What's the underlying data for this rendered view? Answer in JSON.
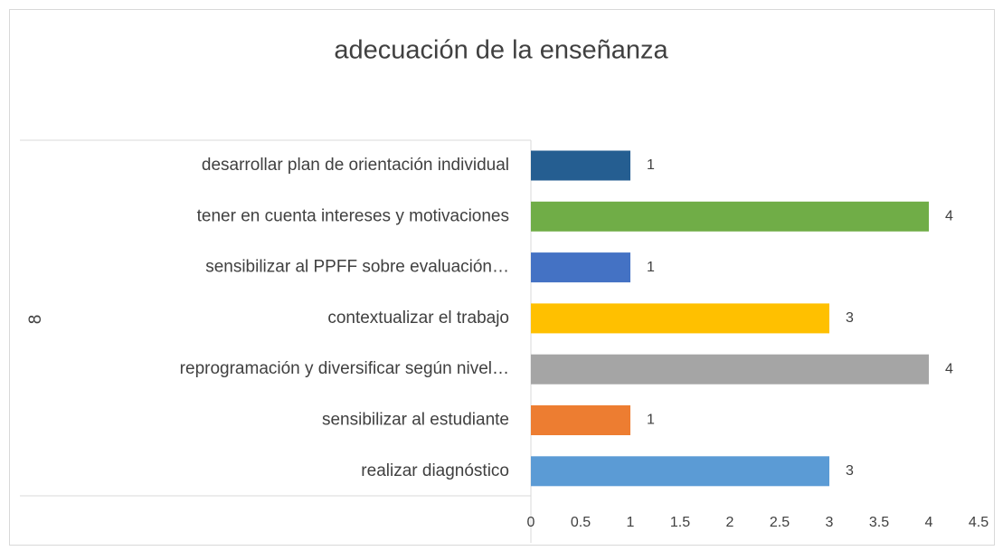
{
  "chart_data": {
    "type": "barh",
    "title": "adecuación de la enseñanza",
    "y_group_label": "8",
    "categories": [
      "desarrollar plan de orientación individual",
      "tener en cuenta intereses y motivaciones",
      "sensibilizar al PPFF sobre evaluación…",
      "contextualizar el trabajo",
      "reprogramación y diversificar según nivel…",
      "sensibilizar al estudiante",
      "realizar diagnóstico"
    ],
    "values": [
      1,
      4,
      1,
      3,
      4,
      1,
      3
    ],
    "colors": [
      "#255e91",
      "#70ad47",
      "#4472c4",
      "#ffc000",
      "#a5a5a5",
      "#ed7d31",
      "#5b9bd5"
    ],
    "xlim": [
      0,
      4.5
    ],
    "xticks": [
      0,
      0.5,
      1,
      1.5,
      2,
      2.5,
      3,
      3.5,
      4,
      4.5
    ],
    "grid": false
  }
}
